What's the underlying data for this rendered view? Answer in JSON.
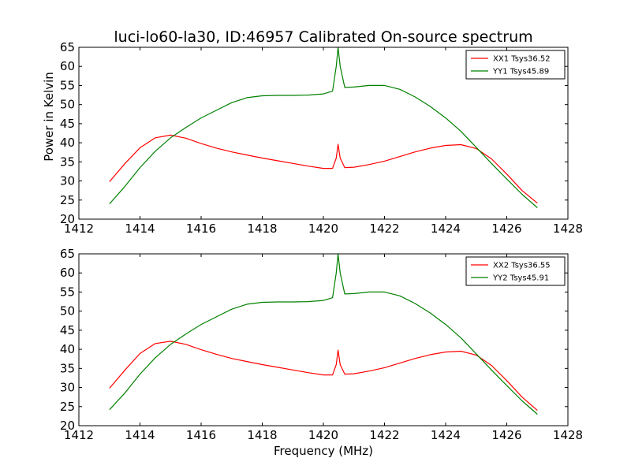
{
  "title": "luci-lo60-la30, ID:46957 Calibrated On-source spectrum",
  "chart_data": [
    {
      "type": "line",
      "xlabel": "",
      "ylabel": "Power in Kelvin",
      "xlim": [
        1412,
        1428
      ],
      "ylim": [
        20,
        65
      ],
      "xticks": [
        "1412",
        "1414",
        "1416",
        "1418",
        "1420",
        "1422",
        "1424",
        "1426",
        "1428"
      ],
      "yticks": [
        "20",
        "25",
        "30",
        "35",
        "40",
        "45",
        "50",
        "55",
        "60",
        "65"
      ],
      "grid": false,
      "legend_position": "top-right",
      "series": [
        {
          "name": "XX1 Tsys36.52",
          "color": "#ff0000",
          "x": [
            1413.0,
            1413.5,
            1414.0,
            1414.5,
            1415.0,
            1415.5,
            1416.0,
            1416.5,
            1417.0,
            1417.5,
            1418.0,
            1418.5,
            1419.0,
            1419.5,
            1420.0,
            1420.3,
            1420.42,
            1420.48,
            1420.55,
            1420.7,
            1421.0,
            1421.5,
            1422.0,
            1422.5,
            1423.0,
            1423.5,
            1424.0,
            1424.5,
            1425.0,
            1425.5,
            1426.0,
            1426.5,
            1427.0
          ],
          "y": [
            29.8,
            34.5,
            38.7,
            41.3,
            42.0,
            41.2,
            39.8,
            38.6,
            37.6,
            36.8,
            36.0,
            35.3,
            34.6,
            33.9,
            33.3,
            33.3,
            36.0,
            39.6,
            36.0,
            33.5,
            33.6,
            34.3,
            35.2,
            36.4,
            37.6,
            38.6,
            39.3,
            39.5,
            38.5,
            35.8,
            31.8,
            27.5,
            24.2
          ]
        },
        {
          "name": "YY1 Tsys45.89",
          "color": "#008000",
          "x": [
            1413.0,
            1413.5,
            1414.0,
            1414.5,
            1415.0,
            1415.5,
            1416.0,
            1416.5,
            1417.0,
            1417.5,
            1418.0,
            1418.5,
            1419.0,
            1419.5,
            1420.0,
            1420.3,
            1420.42,
            1420.48,
            1420.55,
            1420.7,
            1421.0,
            1421.5,
            1422.0,
            1422.5,
            1423.0,
            1423.5,
            1424.0,
            1424.5,
            1425.0,
            1425.5,
            1426.0,
            1426.5,
            1427.0
          ],
          "y": [
            24.0,
            28.5,
            33.5,
            37.8,
            41.3,
            44.0,
            46.5,
            48.5,
            50.5,
            51.8,
            52.3,
            52.4,
            52.4,
            52.5,
            52.8,
            53.5,
            60.0,
            65.0,
            60.0,
            54.5,
            54.6,
            55.0,
            55.0,
            54.0,
            52.0,
            49.5,
            46.5,
            43.0,
            38.8,
            34.6,
            30.5,
            26.5,
            23.0
          ]
        }
      ]
    },
    {
      "type": "line",
      "xlabel": "Frequency (MHz)",
      "ylabel": "",
      "xlim": [
        1412,
        1428
      ],
      "ylim": [
        20,
        65
      ],
      "xticks": [
        "1412",
        "1414",
        "1416",
        "1418",
        "1420",
        "1422",
        "1424",
        "1426",
        "1428"
      ],
      "yticks": [
        "20",
        "25",
        "30",
        "35",
        "40",
        "45",
        "50",
        "55",
        "60",
        "65"
      ],
      "grid": false,
      "legend_position": "top-right",
      "series": [
        {
          "name": "XX2 Tsys36.55",
          "color": "#ff0000",
          "x": [
            1413.0,
            1413.5,
            1414.0,
            1414.5,
            1415.0,
            1415.5,
            1416.0,
            1416.5,
            1417.0,
            1417.5,
            1418.0,
            1418.5,
            1419.0,
            1419.5,
            1420.0,
            1420.3,
            1420.42,
            1420.48,
            1420.55,
            1420.7,
            1421.0,
            1421.5,
            1422.0,
            1422.5,
            1423.0,
            1423.5,
            1424.0,
            1424.5,
            1425.0,
            1425.5,
            1426.0,
            1426.5,
            1427.0
          ],
          "y": [
            29.8,
            34.5,
            38.9,
            41.5,
            42.1,
            41.3,
            39.9,
            38.7,
            37.6,
            36.8,
            36.0,
            35.3,
            34.6,
            33.9,
            33.3,
            33.3,
            36.0,
            39.8,
            36.0,
            33.5,
            33.6,
            34.3,
            35.2,
            36.4,
            37.6,
            38.6,
            39.3,
            39.5,
            38.5,
            35.8,
            31.8,
            27.5,
            24.0
          ]
        },
        {
          "name": "YY2 Tsys45.91",
          "color": "#008000",
          "x": [
            1413.0,
            1413.5,
            1414.0,
            1414.5,
            1415.0,
            1415.5,
            1416.0,
            1416.5,
            1417.0,
            1417.5,
            1418.0,
            1418.5,
            1419.0,
            1419.5,
            1420.0,
            1420.3,
            1420.42,
            1420.48,
            1420.55,
            1420.7,
            1421.0,
            1421.5,
            1422.0,
            1422.5,
            1423.0,
            1423.5,
            1424.0,
            1424.5,
            1425.0,
            1425.5,
            1426.0,
            1426.5,
            1427.0
          ],
          "y": [
            24.2,
            28.5,
            33.5,
            37.8,
            41.3,
            44.0,
            46.5,
            48.5,
            50.5,
            51.8,
            52.3,
            52.4,
            52.4,
            52.5,
            52.8,
            53.5,
            60.0,
            65.0,
            60.0,
            54.5,
            54.6,
            55.0,
            55.0,
            54.0,
            52.0,
            49.5,
            46.5,
            43.0,
            38.8,
            34.6,
            30.5,
            26.5,
            23.0
          ]
        }
      ]
    }
  ]
}
